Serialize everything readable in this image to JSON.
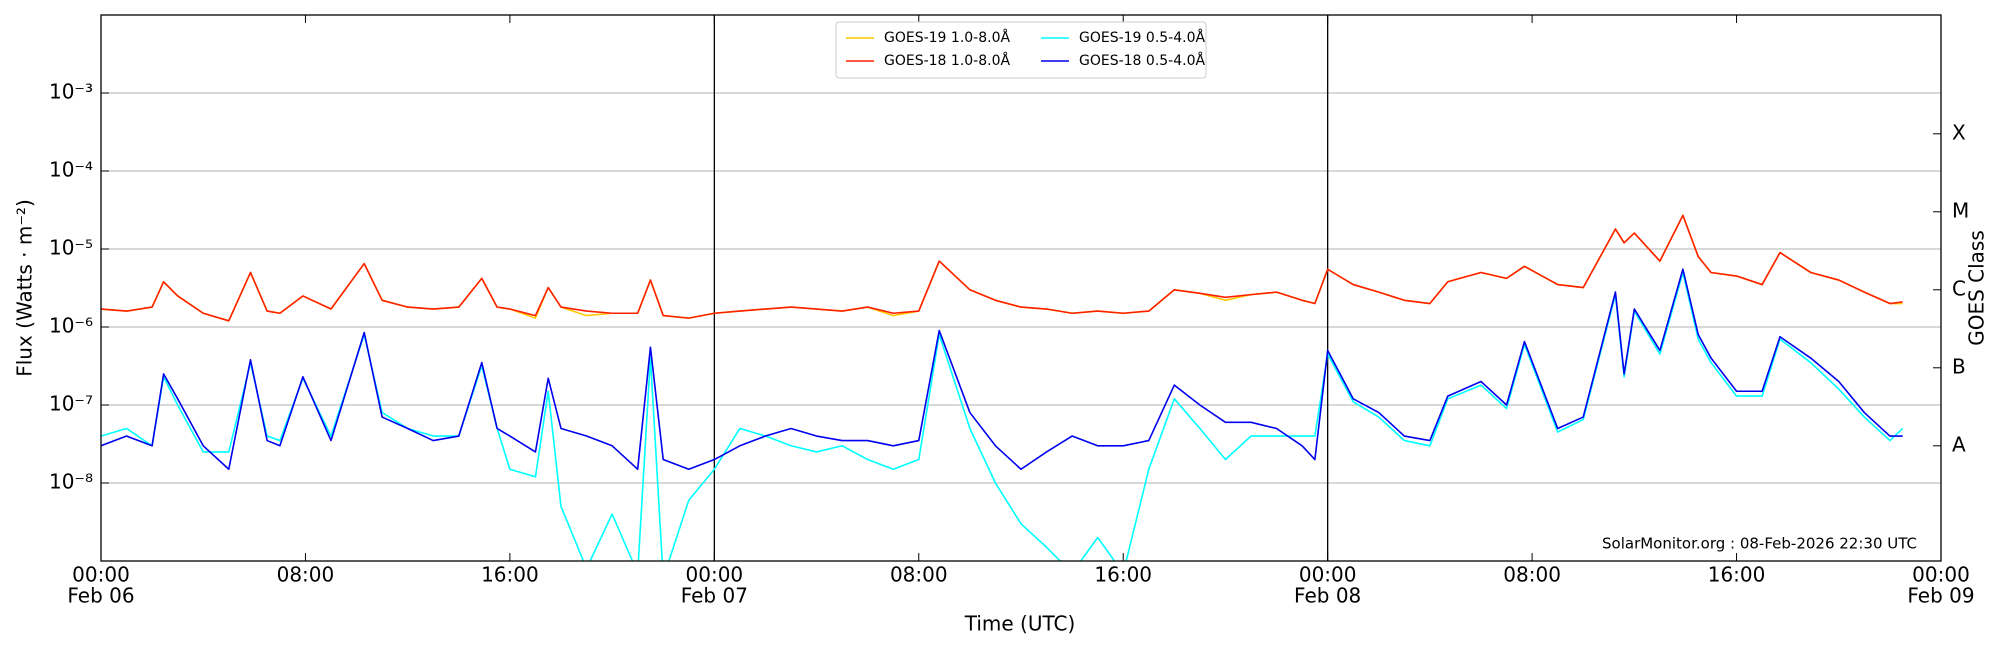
{
  "chart_data": {
    "type": "line",
    "yscale": "log",
    "xlabel": "Time (UTC)",
    "ylabel": "Flux (Watts · m⁻²)",
    "y2label": "GOES Class",
    "annotation": "SolarMonitor.org : 08-Feb-2026 22:30 UTC",
    "legend": "upper center",
    "grid": true,
    "xlim": [
      0,
      72
    ],
    "ylim": [
      1e-09,
      0.01
    ],
    "y2lim": [
      1e-09,
      0.01
    ],
    "xticks": [
      {
        "value": 0,
        "label": "00:00"
      },
      {
        "value": 8,
        "label": "08:00"
      },
      {
        "value": 16,
        "label": "16:00"
      },
      {
        "value": 24,
        "label": "00:00"
      },
      {
        "value": 32,
        "label": "08:00"
      },
      {
        "value": 40,
        "label": "16:00"
      },
      {
        "value": 48,
        "label": "00:00"
      },
      {
        "value": 56,
        "label": "08:00"
      },
      {
        "value": 64,
        "label": "16:00"
      },
      {
        "value": 72,
        "label": "00:00"
      }
    ],
    "xtick_dates": [
      {
        "value": 0,
        "label": "Feb 06"
      },
      {
        "value": 24,
        "label": "Feb 07"
      },
      {
        "value": 48,
        "label": "Feb 08"
      },
      {
        "value": 72,
        "label": "Feb 09"
      }
    ],
    "yticks": [
      {
        "value": 1e-08,
        "label": "10⁻⁸"
      },
      {
        "value": 1e-07,
        "label": "10⁻⁷"
      },
      {
        "value": 1e-06,
        "label": "10⁻⁶"
      },
      {
        "value": 1e-05,
        "label": "10⁻⁵"
      },
      {
        "value": 0.0001,
        "label": "10⁻⁴"
      },
      {
        "value": 0.001,
        "label": "10⁻³"
      }
    ],
    "y2ticks": [
      {
        "value": 3e-08,
        "label": "A"
      },
      {
        "value": 3e-07,
        "label": "B"
      },
      {
        "value": 3e-06,
        "label": "C"
      },
      {
        "value": 3e-05,
        "label": "M"
      },
      {
        "value": 0.0003,
        "label": "X"
      }
    ],
    "x": [
      0,
      1,
      2,
      2.45,
      3,
      4,
      5,
      5.85,
      6.5,
      7,
      7.9,
      9,
      10.3,
      11,
      12,
      13,
      14,
      14.9,
      15.5,
      16,
      17,
      17.5,
      18,
      19,
      20,
      21,
      21.5,
      22,
      23,
      24,
      25,
      26,
      27,
      28,
      29,
      30,
      31,
      32,
      32.8,
      34,
      35,
      36,
      37,
      38,
      39,
      40,
      41,
      42,
      43,
      44,
      45,
      46,
      47,
      47.5,
      48,
      49,
      50,
      51,
      52,
      52.7,
      54,
      55,
      55.7,
      57,
      58,
      59.26,
      59.6,
      60,
      61,
      61.9,
      62.5,
      63,
      64,
      65,
      65.7,
      66.9,
      68,
      69,
      70,
      70.5
    ],
    "series": [
      {
        "name": "GOES-19 1.0-8.0Å",
        "color": "#ffc800",
        "values": [
          1.7e-06,
          1.6e-06,
          1.8e-06,
          3.8e-06,
          2.5e-06,
          1.5e-06,
          1.2e-06,
          5e-06,
          1.6e-06,
          1.5e-06,
          2.5e-06,
          1.7e-06,
          6.5e-06,
          2.2e-06,
          1.8e-06,
          1.7e-06,
          1.8e-06,
          4.2e-06,
          1.8e-06,
          1.7e-06,
          1.3e-06,
          3.2e-06,
          1.8e-06,
          1.4e-06,
          1.5e-06,
          1.5e-06,
          4e-06,
          1.4e-06,
          1.3e-06,
          1.5e-06,
          1.6e-06,
          1.7e-06,
          1.8e-06,
          1.7e-06,
          1.6e-06,
          1.8e-06,
          1.4e-06,
          1.6e-06,
          7e-06,
          3e-06,
          2.2e-06,
          1.8e-06,
          1.7e-06,
          1.5e-06,
          1.6e-06,
          1.5e-06,
          1.6e-06,
          3e-06,
          2.7e-06,
          2.2e-06,
          2.6e-06,
          2.8e-06,
          2.2e-06,
          2e-06,
          5.5e-06,
          3.5e-06,
          2.8e-06,
          2.2e-06,
          2e-06,
          3.8e-06,
          5e-06,
          4.2e-06,
          6e-06,
          3.5e-06,
          3.2e-06,
          1.8e-05,
          1.2e-05,
          1.6e-05,
          7e-06,
          2.7e-05,
          8e-06,
          5e-06,
          4.5e-06,
          3.5e-06,
          9e-06,
          5e-06,
          4e-06,
          2.8e-06,
          2e-06,
          2e-06
        ]
      },
      {
        "name": "GOES-18 1.0-8.0Å",
        "color": "#ff2000",
        "values": [
          1.7e-06,
          1.6e-06,
          1.8e-06,
          3.8e-06,
          2.5e-06,
          1.5e-06,
          1.2e-06,
          5e-06,
          1.6e-06,
          1.5e-06,
          2.5e-06,
          1.7e-06,
          6.5e-06,
          2.2e-06,
          1.8e-06,
          1.7e-06,
          1.8e-06,
          4.2e-06,
          1.8e-06,
          1.7e-06,
          1.4e-06,
          3.2e-06,
          1.8e-06,
          1.6e-06,
          1.5e-06,
          1.5e-06,
          4e-06,
          1.4e-06,
          1.3e-06,
          1.5e-06,
          1.6e-06,
          1.7e-06,
          1.8e-06,
          1.7e-06,
          1.6e-06,
          1.8e-06,
          1.5e-06,
          1.6e-06,
          7e-06,
          3e-06,
          2.2e-06,
          1.8e-06,
          1.7e-06,
          1.5e-06,
          1.6e-06,
          1.5e-06,
          1.6e-06,
          3e-06,
          2.7e-06,
          2.4e-06,
          2.6e-06,
          2.8e-06,
          2.2e-06,
          2e-06,
          5.5e-06,
          3.5e-06,
          2.8e-06,
          2.2e-06,
          2e-06,
          3.8e-06,
          5e-06,
          4.2e-06,
          6e-06,
          3.5e-06,
          3.2e-06,
          1.8e-05,
          1.2e-05,
          1.6e-05,
          7e-06,
          2.7e-05,
          8e-06,
          5e-06,
          4.5e-06,
          3.5e-06,
          9e-06,
          5e-06,
          4e-06,
          2.8e-06,
          2e-06,
          2.1e-06
        ]
      },
      {
        "name": "GOES-19 0.5-4.0Å",
        "color": "#00ffff",
        "values": [
          4e-08,
          5e-08,
          3e-08,
          2.3e-07,
          1e-07,
          2.5e-08,
          2.5e-08,
          3.5e-07,
          4e-08,
          3.5e-08,
          2.2e-07,
          4e-08,
          8e-07,
          8e-08,
          5e-08,
          4e-08,
          4e-08,
          3.2e-07,
          5e-08,
          1.5e-08,
          1.2e-08,
          1.5e-07,
          5e-09,
          8e-10,
          4e-09,
          7e-10,
          4e-07,
          6e-10,
          6e-09,
          1.5e-08,
          5e-08,
          4e-08,
          3e-08,
          2.5e-08,
          3e-08,
          2e-08,
          1.5e-08,
          2e-08,
          8e-07,
          5e-08,
          1e-08,
          3e-09,
          1.5e-09,
          7e-10,
          2e-09,
          7e-10,
          1.5e-08,
          1.2e-07,
          5e-08,
          2e-08,
          4e-08,
          4e-08,
          4e-08,
          4e-08,
          4.5e-07,
          1.1e-07,
          7e-08,
          3.5e-08,
          3e-08,
          1.2e-07,
          1.8e-07,
          9e-08,
          6e-07,
          4.5e-08,
          6.5e-08,
          2.6e-06,
          2.3e-07,
          1.6e-06,
          4.5e-07,
          5e-06,
          7e-07,
          3.5e-07,
          1.3e-07,
          1.3e-07,
          7e-07,
          3.5e-07,
          1.6e-07,
          7e-08,
          3.5e-08,
          5e-08
        ]
      },
      {
        "name": "GOES-18 0.5-4.0Å",
        "color": "#0000ee",
        "values": [
          3e-08,
          4e-08,
          3e-08,
          2.5e-07,
          1.2e-07,
          3e-08,
          1.5e-08,
          3.8e-07,
          3.5e-08,
          3e-08,
          2.3e-07,
          3.5e-08,
          8.5e-07,
          7e-08,
          5e-08,
          3.5e-08,
          4e-08,
          3.5e-07,
          5e-08,
          4e-08,
          2.5e-08,
          2.2e-07,
          5e-08,
          4e-08,
          3e-08,
          1.5e-08,
          5.5e-07,
          2e-08,
          1.5e-08,
          2e-08,
          3e-08,
          4e-08,
          5e-08,
          4e-08,
          3.5e-08,
          3.5e-08,
          3e-08,
          3.5e-08,
          9e-07,
          8e-08,
          3e-08,
          1.5e-08,
          2.5e-08,
          4e-08,
          3e-08,
          3e-08,
          3.5e-08,
          1.8e-07,
          1e-07,
          6e-08,
          6e-08,
          5e-08,
          3e-08,
          2e-08,
          5e-07,
          1.2e-07,
          8e-08,
          4e-08,
          3.5e-08,
          1.3e-07,
          2e-07,
          1e-07,
          6.5e-07,
          5e-08,
          7e-08,
          2.8e-06,
          2.5e-07,
          1.7e-06,
          5e-07,
          5.5e-06,
          8e-07,
          4e-07,
          1.5e-07,
          1.5e-07,
          7.5e-07,
          4e-07,
          2e-07,
          8e-08,
          4e-08,
          4e-08
        ]
      }
    ]
  }
}
